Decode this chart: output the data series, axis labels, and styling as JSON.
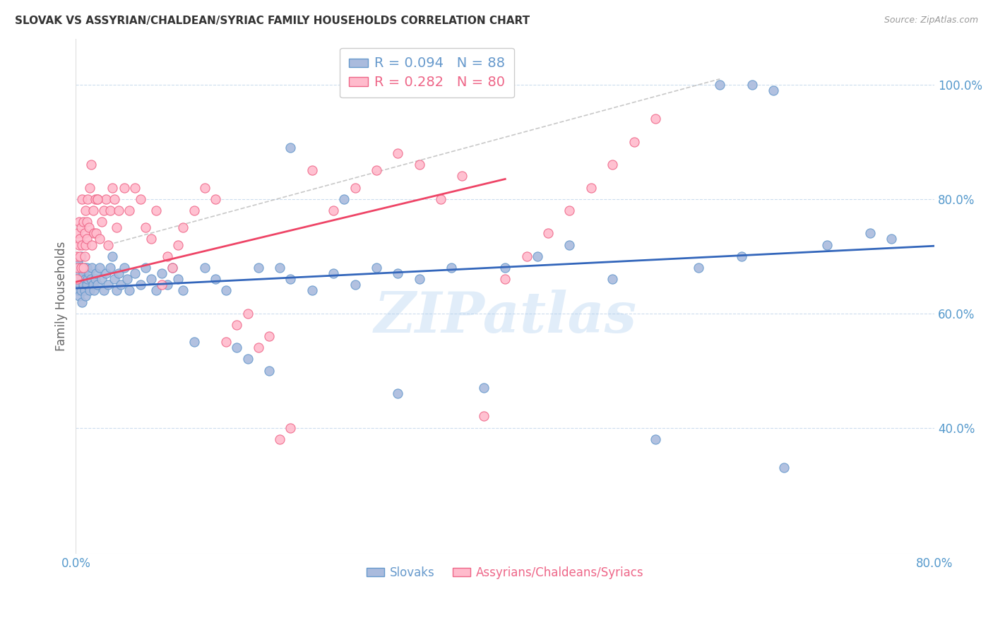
{
  "title": "SLOVAK VS ASSYRIAN/CHALDEAN/SYRIAC FAMILY HOUSEHOLDS CORRELATION CHART",
  "source": "Source: ZipAtlas.com",
  "ylabel": "Family Households",
  "xlim": [
    0.0,
    0.8
  ],
  "ylim": [
    0.18,
    1.08
  ],
  "x_ticks": [
    0.0,
    0.2,
    0.4,
    0.6,
    0.8
  ],
  "x_tick_labels": [
    "0.0%",
    "",
    "",
    "",
    "80.0%"
  ],
  "y_ticks": [
    0.4,
    0.6,
    0.8,
    1.0
  ],
  "y_tick_labels": [
    "40.0%",
    "60.0%",
    "80.0%",
    "100.0%"
  ],
  "legend1_label": "R = 0.094   N = 88",
  "legend2_label": "R = 0.282   N = 80",
  "legend1_color": "#6699cc",
  "legend2_color": "#ee6688",
  "scatter_color_blue": "#aabbdd",
  "scatter_color_pink": "#ffbbcc",
  "trendline_blue_color": "#3366bb",
  "trendline_pink_color": "#ee4466",
  "trendline_dashed_color": "#bbbbbb",
  "axis_color": "#5599cc",
  "grid_color": "#ccddee",
  "background_color": "#ffffff",
  "watermark_text": "ZIPatlas",
  "watermark_color": "#aaccee",
  "watermark_alpha": 0.35,
  "blue_x": [
    0.001,
    0.002,
    0.002,
    0.003,
    0.003,
    0.004,
    0.004,
    0.005,
    0.005,
    0.006,
    0.006,
    0.007,
    0.007,
    0.008,
    0.008,
    0.009,
    0.009,
    0.01,
    0.01,
    0.011,
    0.012,
    0.013,
    0.014,
    0.015,
    0.016,
    0.017,
    0.018,
    0.019,
    0.02,
    0.022,
    0.024,
    0.026,
    0.028,
    0.03,
    0.032,
    0.034,
    0.036,
    0.038,
    0.04,
    0.042,
    0.045,
    0.048,
    0.05,
    0.055,
    0.06,
    0.065,
    0.07,
    0.075,
    0.08,
    0.085,
    0.09,
    0.095,
    0.1,
    0.11,
    0.12,
    0.13,
    0.14,
    0.15,
    0.16,
    0.17,
    0.18,
    0.19,
    0.2,
    0.22,
    0.24,
    0.26,
    0.28,
    0.3,
    0.32,
    0.35,
    0.38,
    0.4,
    0.43,
    0.46,
    0.5,
    0.54,
    0.58,
    0.62,
    0.66,
    0.7,
    0.74,
    0.76,
    0.6,
    0.63,
    0.65,
    0.2,
    0.25,
    0.3
  ],
  "blue_y": [
    0.66,
    0.69,
    0.64,
    0.67,
    0.63,
    0.65,
    0.68,
    0.7,
    0.64,
    0.66,
    0.62,
    0.67,
    0.65,
    0.68,
    0.64,
    0.66,
    0.63,
    0.65,
    0.68,
    0.66,
    0.67,
    0.64,
    0.66,
    0.68,
    0.65,
    0.64,
    0.66,
    0.67,
    0.65,
    0.68,
    0.66,
    0.64,
    0.67,
    0.65,
    0.68,
    0.7,
    0.66,
    0.64,
    0.67,
    0.65,
    0.68,
    0.66,
    0.64,
    0.67,
    0.65,
    0.68,
    0.66,
    0.64,
    0.67,
    0.65,
    0.68,
    0.66,
    0.64,
    0.55,
    0.68,
    0.66,
    0.64,
    0.54,
    0.52,
    0.68,
    0.5,
    0.68,
    0.66,
    0.64,
    0.67,
    0.65,
    0.68,
    0.46,
    0.66,
    0.68,
    0.47,
    0.68,
    0.7,
    0.72,
    0.66,
    0.38,
    0.68,
    0.7,
    0.33,
    0.72,
    0.74,
    0.73,
    1.0,
    1.0,
    0.99,
    0.89,
    0.8,
    0.67
  ],
  "pink_x": [
    0.001,
    0.001,
    0.002,
    0.002,
    0.003,
    0.003,
    0.004,
    0.004,
    0.005,
    0.005,
    0.006,
    0.006,
    0.007,
    0.007,
    0.008,
    0.008,
    0.009,
    0.009,
    0.01,
    0.01,
    0.011,
    0.012,
    0.013,
    0.014,
    0.015,
    0.016,
    0.017,
    0.018,
    0.019,
    0.02,
    0.022,
    0.024,
    0.026,
    0.028,
    0.03,
    0.032,
    0.034,
    0.036,
    0.038,
    0.04,
    0.045,
    0.05,
    0.055,
    0.06,
    0.065,
    0.07,
    0.075,
    0.08,
    0.085,
    0.09,
    0.095,
    0.1,
    0.11,
    0.12,
    0.13,
    0.14,
    0.15,
    0.16,
    0.17,
    0.18,
    0.19,
    0.2,
    0.22,
    0.24,
    0.26,
    0.28,
    0.3,
    0.32,
    0.34,
    0.36,
    0.38,
    0.4,
    0.42,
    0.44,
    0.46,
    0.48,
    0.5,
    0.52,
    0.54,
    0.02
  ],
  "pink_y": [
    0.7,
    0.66,
    0.74,
    0.68,
    0.72,
    0.76,
    0.7,
    0.73,
    0.68,
    0.75,
    0.8,
    0.72,
    0.68,
    0.76,
    0.7,
    0.74,
    0.78,
    0.72,
    0.76,
    0.73,
    0.8,
    0.75,
    0.82,
    0.86,
    0.72,
    0.78,
    0.74,
    0.8,
    0.74,
    0.8,
    0.73,
    0.76,
    0.78,
    0.8,
    0.72,
    0.78,
    0.82,
    0.8,
    0.75,
    0.78,
    0.82,
    0.78,
    0.82,
    0.8,
    0.75,
    0.73,
    0.78,
    0.65,
    0.7,
    0.68,
    0.72,
    0.75,
    0.78,
    0.82,
    0.8,
    0.55,
    0.58,
    0.6,
    0.54,
    0.56,
    0.38,
    0.4,
    0.85,
    0.78,
    0.82,
    0.85,
    0.88,
    0.86,
    0.8,
    0.84,
    0.42,
    0.66,
    0.7,
    0.74,
    0.78,
    0.82,
    0.86,
    0.9,
    0.94,
    0.8
  ],
  "blue_trend_x": [
    0.0,
    0.8
  ],
  "blue_trend_y": [
    0.644,
    0.718
  ],
  "pink_trend_x": [
    0.0,
    0.4
  ],
  "pink_trend_y": [
    0.655,
    0.835
  ],
  "dash_line_x": [
    0.03,
    0.6
  ],
  "dash_line_y": [
    0.72,
    1.01
  ]
}
